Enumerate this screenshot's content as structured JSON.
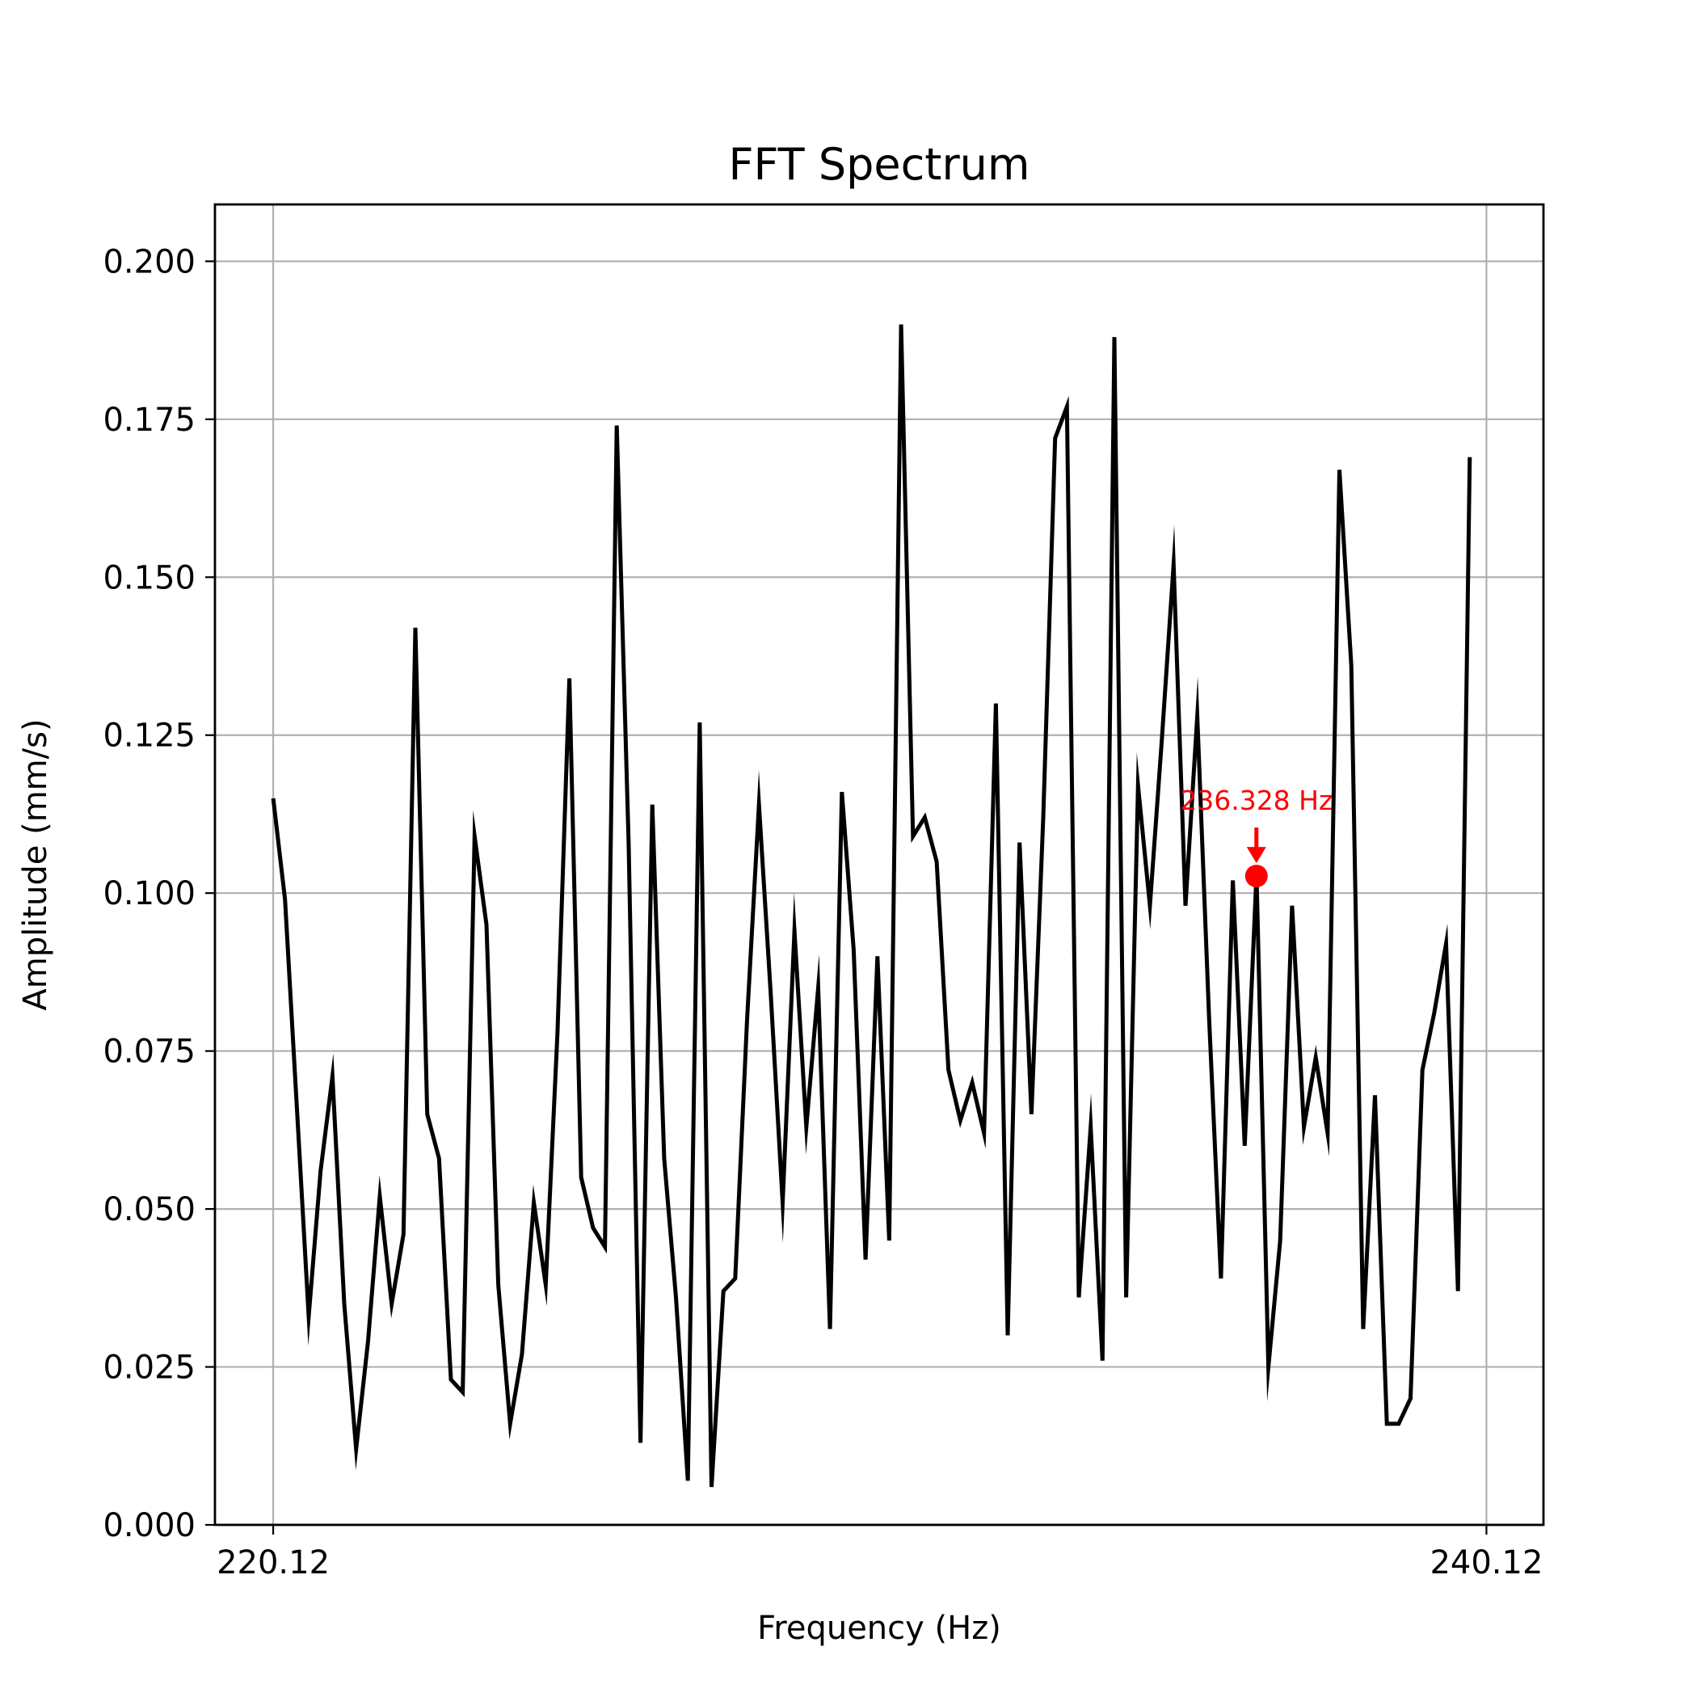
{
  "chart_data": {
    "type": "line",
    "title": "FFT Spectrum",
    "xlabel": "Frequency (Hz)",
    "ylabel": "Amplitude (mm/s)",
    "xlim": [
      219.16,
      241.06
    ],
    "ylim": [
      0.0,
      0.209
    ],
    "xticks": [
      220.12,
      240.12
    ],
    "xtick_labels": [
      "220.12",
      "240.12"
    ],
    "yticks": [
      0.0,
      0.025,
      0.05,
      0.075,
      0.1,
      0.125,
      0.15,
      0.175,
      0.2
    ],
    "ytick_labels": [
      "0.000",
      "0.025",
      "0.050",
      "0.075",
      "0.100",
      "0.125",
      "0.150",
      "0.175",
      "0.200"
    ],
    "grid": true,
    "series": [
      {
        "color": "#000000",
        "x_start": 220.12,
        "x_step": 0.1953,
        "values": [
          0.115,
          0.099,
          0.066,
          0.033,
          0.056,
          0.071,
          0.035,
          0.012,
          0.029,
          0.052,
          0.035,
          0.046,
          0.142,
          0.065,
          0.058,
          0.023,
          0.021,
          0.109,
          0.095,
          0.038,
          0.016,
          0.027,
          0.051,
          0.038,
          0.078,
          0.134,
          0.055,
          0.047,
          0.044,
          0.174,
          0.108,
          0.013,
          0.114,
          0.058,
          0.036,
          0.007,
          0.127,
          0.006,
          0.037,
          0.039,
          0.08,
          0.114,
          0.084,
          0.051,
          0.094,
          0.063,
          0.085,
          0.031,
          0.116,
          0.091,
          0.042,
          0.09,
          0.045,
          0.19,
          0.109,
          0.112,
          0.105,
          0.072,
          0.064,
          0.07,
          0.062,
          0.13,
          0.03,
          0.108,
          0.065,
          0.112,
          0.172,
          0.177,
          0.036,
          0.063,
          0.026,
          0.188,
          0.036,
          0.117,
          0.098,
          0.124,
          0.152,
          0.098,
          0.128,
          0.08,
          0.039,
          0.102,
          0.06,
          0.103,
          0.025,
          0.045,
          0.098,
          0.063,
          0.074,
          0.062,
          0.167,
          0.136,
          0.031,
          0.068,
          0.016,
          0.016,
          0.02,
          0.072,
          0.081,
          0.092,
          0.037,
          0.169
        ]
      }
    ],
    "annotation": {
      "text": "236.328 Hz",
      "x": 236.328,
      "y": 0.1027,
      "color": "#ff0000"
    }
  }
}
